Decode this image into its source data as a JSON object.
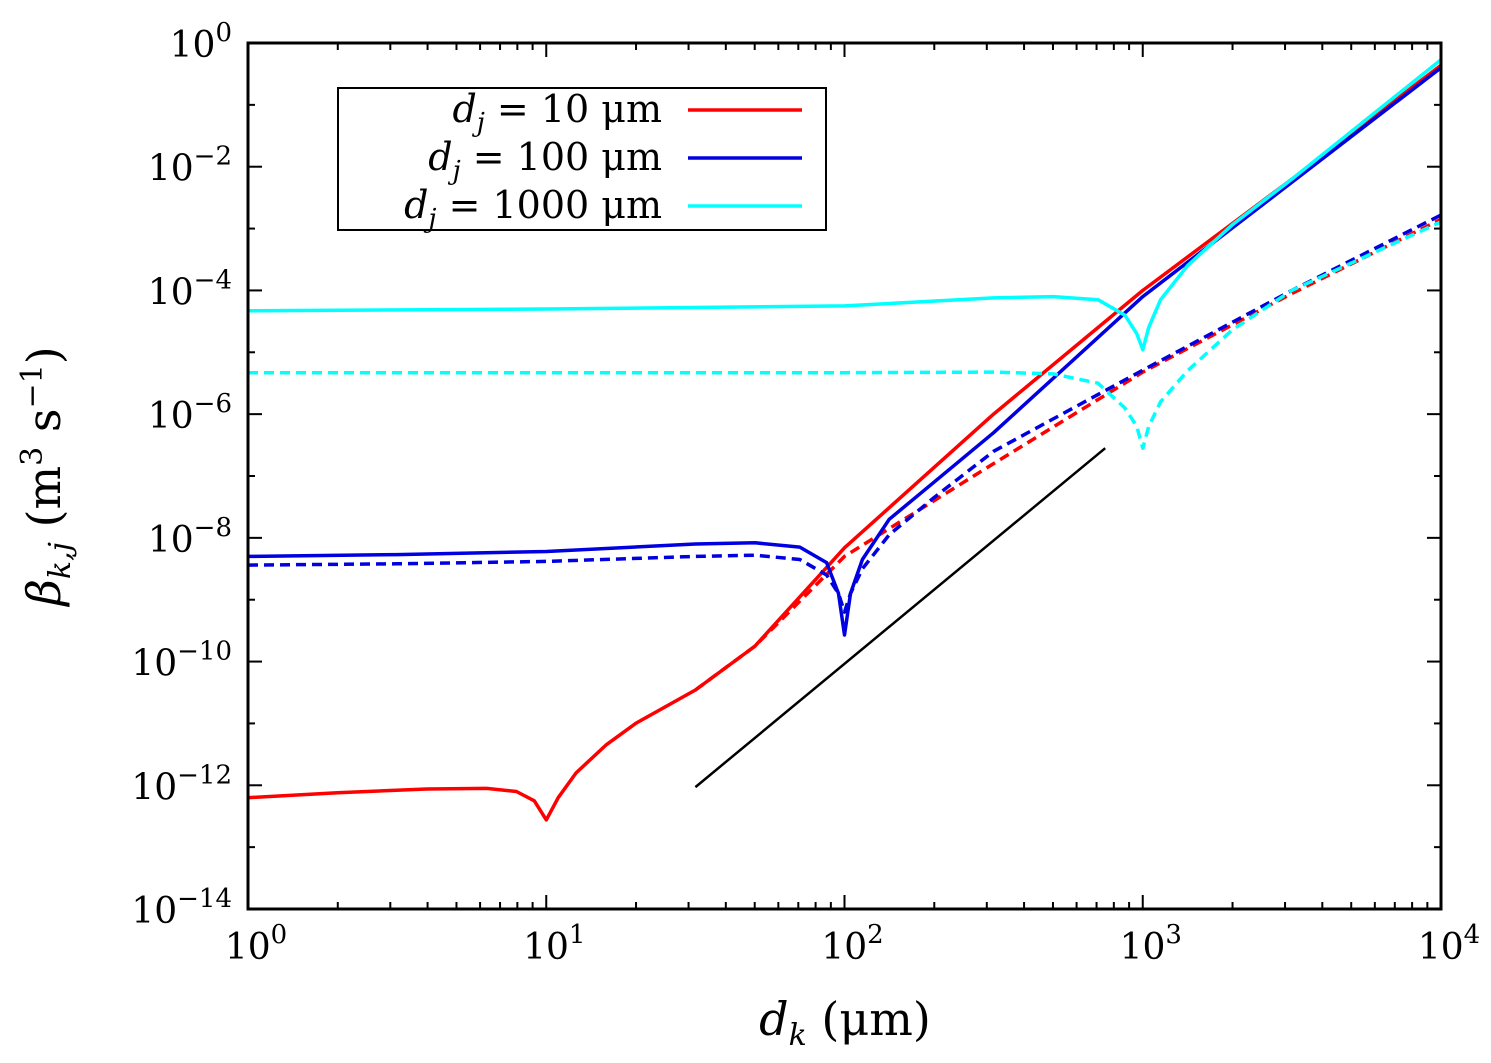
{
  "chart_data": {
    "type": "line",
    "xscale": "log",
    "yscale": "log",
    "xlim": [
      1,
      10000
    ],
    "ylim": [
      1e-14,
      1
    ],
    "xlabel": {
      "main": "d",
      "sub": "k",
      "unit": " (μm)"
    },
    "ylabel": {
      "main": "β",
      "sub": "k,j",
      "unit_a": " (m",
      "sup_a": "3",
      "unit_b": " s",
      "sup_b": "−1",
      "unit_c": ")"
    },
    "x_tick_exponents": [
      0,
      1,
      2,
      3,
      4
    ],
    "y_tick_exponents": [
      0,
      -2,
      -4,
      -6,
      -8,
      -10,
      -12,
      -14
    ],
    "tick_base": "10",
    "legend": {
      "placement": "top-left",
      "entries": [
        {
          "var": "d",
          "sub": "j",
          "text": " = 10 μm",
          "color": "#ff0000"
        },
        {
          "var": "d",
          "sub": "j",
          "text": " = 100 μm",
          "color": "#0000e0"
        },
        {
          "var": "d",
          "sub": "j",
          "text": " = 1000 μm",
          "color": "#00ffff"
        }
      ]
    },
    "series": [
      {
        "name": "d_j = 10 μm (solid)",
        "color": "#ff0000",
        "dash": false,
        "log_x": [
          0,
          0.3,
          0.6,
          0.8,
          0.9,
          0.96,
          1.0,
          1.04,
          1.1,
          1.2,
          1.3,
          1.5,
          1.7,
          2.0,
          2.5,
          3.0,
          3.5,
          4.0
        ],
        "log_y": [
          -12.2,
          -12.12,
          -12.06,
          -12.05,
          -12.1,
          -12.25,
          -12.56,
          -12.2,
          -11.8,
          -11.35,
          -11.0,
          -10.46,
          -9.75,
          -8.16,
          -6.0,
          -4.0,
          -2.2,
          -0.36
        ]
      },
      {
        "name": "d_j = 10 μm (dashed)",
        "color": "#ff0000",
        "dash": true,
        "log_x": [
          1.5,
          1.7,
          2.0,
          2.5,
          3.0,
          3.5,
          4.0
        ],
        "log_y": [
          -10.46,
          -9.75,
          -8.3,
          -6.8,
          -5.32,
          -4.05,
          -2.85
        ]
      },
      {
        "name": "d_j = 100 μm (solid)",
        "color": "#0000e0",
        "dash": false,
        "log_x": [
          0,
          0.5,
          1.0,
          1.5,
          1.7,
          1.85,
          1.94,
          1.98,
          2.0,
          2.02,
          2.06,
          2.15,
          2.3,
          2.5,
          3.0,
          3.5,
          4.0
        ],
        "log_y": [
          -8.3,
          -8.27,
          -8.22,
          -8.1,
          -8.08,
          -8.15,
          -8.4,
          -8.9,
          -9.57,
          -8.9,
          -8.35,
          -7.7,
          -7.1,
          -6.3,
          -4.1,
          -2.25,
          -0.4
        ]
      },
      {
        "name": "d_j = 100 μm (dashed)",
        "color": "#0000e0",
        "dash": true,
        "log_x": [
          0,
          0.5,
          1.0,
          1.5,
          1.7,
          1.85,
          1.94,
          1.98,
          2.0,
          2.02,
          2.06,
          2.15,
          2.3,
          2.5,
          3.0,
          3.5,
          4.0
        ],
        "log_y": [
          -8.44,
          -8.42,
          -8.38,
          -8.3,
          -8.28,
          -8.35,
          -8.6,
          -8.9,
          -9.2,
          -8.9,
          -8.5,
          -7.95,
          -7.35,
          -6.6,
          -5.29,
          -4.0,
          -2.78
        ]
      },
      {
        "name": "d_j = 1000 μm (solid)",
        "color": "#00ffff",
        "dash": false,
        "log_x": [
          0,
          1.0,
          2.0,
          2.5,
          2.7,
          2.85,
          2.94,
          2.98,
          3.0,
          3.02,
          3.06,
          3.15,
          3.3,
          3.5,
          4.0
        ],
        "log_y": [
          -4.33,
          -4.3,
          -4.25,
          -4.12,
          -4.1,
          -4.15,
          -4.4,
          -4.7,
          -4.96,
          -4.6,
          -4.15,
          -3.6,
          -2.94,
          -2.2,
          -0.27
        ]
      },
      {
        "name": "d_j = 1000 μm (dashed)",
        "color": "#00ffff",
        "dash": true,
        "log_x": [
          0,
          1.0,
          2.0,
          2.5,
          2.7,
          2.85,
          2.94,
          2.98,
          3.0,
          3.02,
          3.06,
          3.15,
          3.3,
          3.5,
          4.0
        ],
        "log_y": [
          -5.33,
          -5.33,
          -5.33,
          -5.32,
          -5.35,
          -5.5,
          -5.9,
          -6.2,
          -6.55,
          -6.2,
          -5.8,
          -5.3,
          -4.64,
          -4.0,
          -2.89
        ]
      },
      {
        "name": "reference slope",
        "color": "#000000",
        "dash": false,
        "log_x": [
          1.5,
          2.874
        ],
        "log_y": [
          -12.03,
          -6.55
        ]
      }
    ]
  }
}
